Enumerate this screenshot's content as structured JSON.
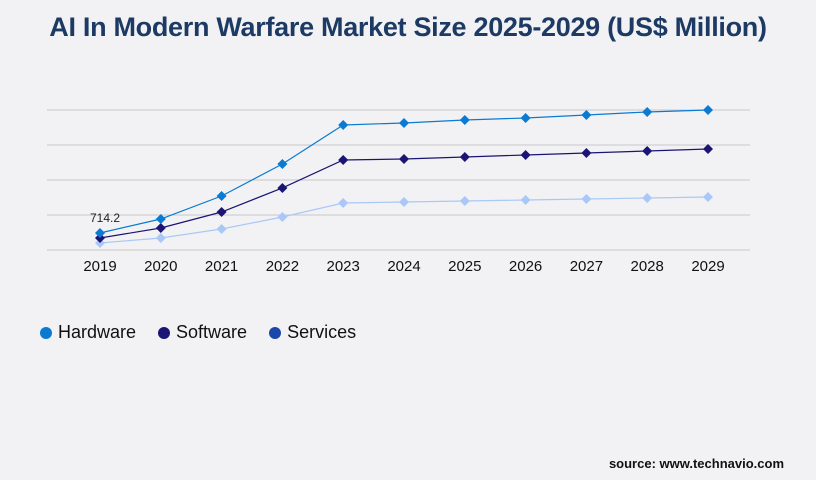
{
  "chart_data": {
    "type": "line",
    "title": "AI In Modern Warfare Market Size 2025-2029 (US$ Million)",
    "categories": [
      "2019",
      "2020",
      "2021",
      "2022",
      "2023",
      "2024",
      "2025",
      "2026",
      "2027",
      "2028",
      "2029"
    ],
    "ylim": [
      0,
      5880
    ],
    "grid": true,
    "legend_placement": "bottom-left",
    "series": [
      {
        "name": "Hardware",
        "color": "#0a7ad2",
        "legend_color": "#0a7ad2",
        "values": [
          714.2,
          1302,
          2268,
          3613,
          5251,
          5335,
          5461,
          5545,
          5671,
          5797,
          5880
        ]
      },
      {
        "name": "Software",
        "color": "#1a1474",
        "legend_color": "#1a1474",
        "values": [
          504,
          924,
          1596,
          2605,
          3781,
          3823,
          3907,
          3991,
          4075,
          4159,
          4243
        ]
      },
      {
        "name": "Services",
        "color": "#a9c8f8",
        "legend_color": "#1a47a8",
        "values": [
          294,
          504,
          882,
          1386,
          1974,
          2016,
          2058,
          2100,
          2142,
          2184,
          2226
        ]
      }
    ],
    "annotations": [
      {
        "series": "Hardware",
        "category": "2019",
        "text": "714.2"
      }
    ]
  },
  "source": "source: www.technavio.com"
}
